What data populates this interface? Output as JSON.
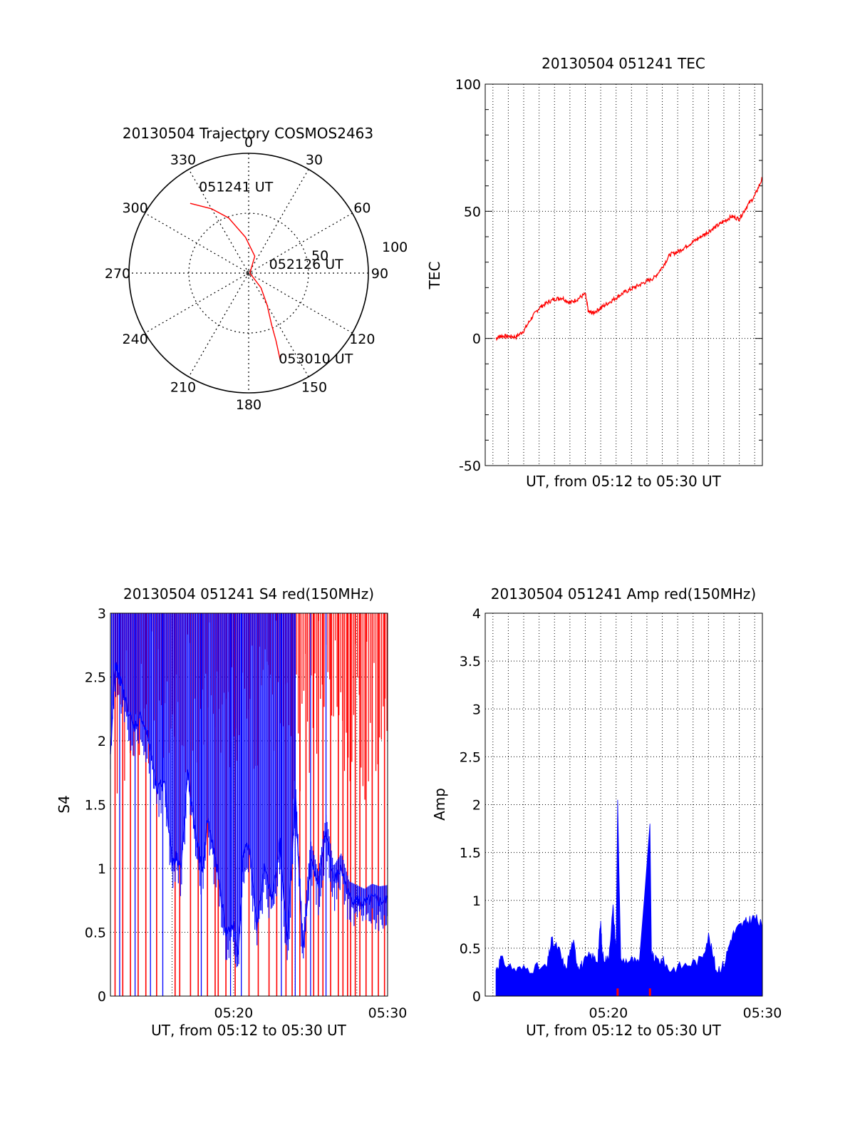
{
  "chart_data": [
    {
      "type": "polar",
      "title": "20130504 Trajectory COSMOS2463",
      "angle_labels": [
        "0",
        "30",
        "60",
        "90",
        "120",
        "150",
        "180",
        "210",
        "240",
        "270",
        "300",
        "330"
      ],
      "radius_labels": [
        "50",
        "100"
      ],
      "rmax": 100,
      "series": [
        {
          "name": "trajectory",
          "color": "#ff0000",
          "points": [
            [
              320,
              76
            ],
            [
              330,
              62
            ],
            [
              340,
              49
            ],
            [
              355,
              30
            ],
            [
              20,
              15
            ],
            [
              90,
              1
            ],
            [
              140,
              16
            ],
            [
              150,
              31
            ],
            [
              156,
              47
            ],
            [
              158,
              61
            ],
            [
              160,
              77
            ]
          ]
        }
      ],
      "annotations": [
        {
          "text": "051241 UT",
          "az": 330,
          "r": 76
        },
        {
          "text": "052126 UT",
          "az": 90,
          "r": 1
        },
        {
          "text": "053010 UT",
          "az": 160,
          "r": 77
        }
      ]
    },
    {
      "type": "line",
      "title": "20130504 051241 TEC",
      "xlabel": "UT, from 05:12 to 05:30 UT",
      "ylabel": "TEC",
      "xlim": [
        0,
        18
      ],
      "ylim": [
        -50,
        100
      ],
      "yticks": [
        "-50",
        "0",
        "50",
        "100"
      ],
      "xgrid_minutes": [
        0.5,
        1.5,
        2.5,
        3.5,
        4.5,
        5.5,
        6.5,
        7.5,
        8.5,
        9.5,
        10.5,
        11.5,
        12.5,
        13.5,
        14.5,
        15.5,
        16.5,
        17.5
      ],
      "series": [
        {
          "name": "TEC",
          "color": "#ff0000",
          "x": [
            0.7,
            1.0,
            1.5,
            2.0,
            2.5,
            3.0,
            3.5,
            4.0,
            4.5,
            5.0,
            5.5,
            6.0,
            6.5,
            6.7,
            7.0,
            7.5,
            8.0,
            8.5,
            9.0,
            9.5,
            10.0,
            10.5,
            11.0,
            11.5,
            12.0,
            12.5,
            13.0,
            13.5,
            14.0,
            14.5,
            15.0,
            15.5,
            16.0,
            16.5,
            17.0,
            17.5,
            18.0
          ],
          "y": [
            0,
            1,
            0.8,
            0.6,
            3,
            8,
            12,
            14,
            15.5,
            16,
            14,
            15.5,
            17.5,
            10.5,
            10,
            12,
            14,
            16,
            18,
            19.5,
            21,
            22.5,
            24,
            28,
            33,
            34,
            36,
            38,
            40,
            42,
            44,
            46,
            48,
            47,
            52,
            56,
            63
          ]
        }
      ]
    },
    {
      "type": "line",
      "title": "20130504 051241 S4 red(150MHz)",
      "xlabel": "UT, from 05:12 to 05:30 UT",
      "ylabel": "S4",
      "xlim": [
        0,
        18
      ],
      "ylim": [
        0,
        3
      ],
      "yticks": [
        "0",
        "0.5",
        "1",
        "1.5",
        "2",
        "2.5",
        "3"
      ],
      "xticks": [
        {
          "value": 8,
          "label": "05:20"
        },
        {
          "value": 18,
          "label": "05:30"
        }
      ],
      "series": [
        {
          "name": "S4 blue",
          "color": "#0000ff",
          "x": [
            0.0,
            0.3,
            0.6,
            1.0,
            1.5,
            2.0,
            2.5,
            3.0,
            3.5,
            4.0,
            4.3,
            4.6,
            5.0,
            5.5,
            6.0,
            6.3,
            6.6,
            7.0,
            7.5,
            8.0,
            8.3,
            8.6,
            9.0,
            9.5,
            10.0,
            10.5,
            11.0,
            11.5,
            12.0,
            12.5,
            13.0,
            13.5,
            14.0,
            14.5,
            15.0,
            15.5,
            16.0,
            16.5,
            17.0,
            17.5,
            18.0
          ],
          "y": [
            1.9,
            2.6,
            2.5,
            2.3,
            2.1,
            2.2,
            2.0,
            1.6,
            1.7,
            1.05,
            1.1,
            1.0,
            1.75,
            1.3,
            0.95,
            1.4,
            1.2,
            0.95,
            0.5,
            0.55,
            0.3,
            1.1,
            1.2,
            0.55,
            1.0,
            0.75,
            1.2,
            0.4,
            1.6,
            0.35,
            1.1,
            0.85,
            1.3,
            0.9,
            1.0,
            0.78,
            0.75,
            0.72,
            0.76,
            0.74,
            0.75
          ]
        }
      ],
      "spikes": {
        "red_x": [
          0.3,
          0.8,
          1.3,
          1.8,
          2.3,
          3.0,
          4.2,
          4.5,
          5.2,
          5.7,
          6.3,
          6.8,
          7.0,
          7.5,
          8.1,
          9.0,
          9.6,
          10.3,
          10.8,
          11.4,
          11.8,
          12.3,
          12.7,
          13.2,
          13.5,
          13.8,
          14.3,
          14.8,
          15.1,
          15.4,
          15.6,
          15.9,
          16.2,
          16.6,
          17.0,
          17.4,
          17.8
        ],
        "blue_x": [
          0.6,
          1.6,
          2.6,
          3.4,
          5.9,
          7.8,
          8.5,
          11.1,
          12.0,
          13.0,
          14.0
        ]
      }
    },
    {
      "type": "line",
      "title": "20130504 051241 Amp red(150MHz)",
      "xlabel": "UT, from 05:12 to 05:30 UT",
      "ylabel": "Amp",
      "xlim": [
        0,
        18
      ],
      "ylim": [
        0,
        4
      ],
      "yticks": [
        "0",
        "0.5",
        "1",
        "1.5",
        "2",
        "2.5",
        "3",
        "3.5",
        "4"
      ],
      "xticks": [
        {
          "value": 8,
          "label": "05:20"
        },
        {
          "value": 18,
          "label": "05:30"
        }
      ],
      "series": [
        {
          "name": "Amp envelope",
          "color": "#0000ff",
          "x": [
            0.7,
            1.0,
            2.0,
            3.0,
            4.0,
            4.3,
            4.8,
            5.2,
            5.7,
            6.0,
            6.3,
            6.8,
            7.3,
            7.5,
            7.6,
            8.0,
            8.3,
            8.5,
            8.6,
            8.8,
            9.5,
            10.0,
            10.7,
            10.8,
            11.0,
            11.5,
            12.0,
            13.0,
            14.0,
            14.5,
            15.0,
            15.5,
            16.0,
            16.5,
            17.0,
            17.5,
            18.0
          ],
          "y": [
            0.25,
            0.35,
            0.25,
            0.27,
            0.27,
            0.55,
            0.45,
            0.25,
            0.55,
            0.3,
            0.3,
            0.4,
            0.35,
            0.75,
            0.4,
            0.35,
            0.9,
            0.45,
            2.05,
            0.35,
            0.35,
            0.3,
            1.8,
            0.4,
            0.35,
            0.35,
            0.25,
            0.3,
            0.35,
            0.6,
            0.25,
            0.3,
            0.6,
            0.7,
            0.75,
            0.8,
            0.7
          ]
        }
      ],
      "red_marks_x": [
        8.6,
        10.7
      ]
    }
  ]
}
